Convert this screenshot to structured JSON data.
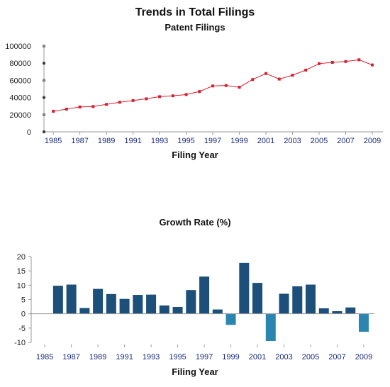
{
  "header": {
    "title": "Trends in Total Filings"
  },
  "chart_data": [
    {
      "type": "line",
      "title": "Patent Filings",
      "xlabel": "Filing Year",
      "ylabel": "",
      "ylim": [
        0,
        100000
      ],
      "yticks": [
        0,
        20000,
        40000,
        60000,
        80000,
        100000
      ],
      "xticks": [
        1985,
        1987,
        1989,
        1991,
        1993,
        1995,
        1997,
        1999,
        2001,
        2003,
        2005,
        2007,
        2009
      ],
      "x": [
        1985,
        1986,
        1987,
        1988,
        1989,
        1990,
        1991,
        1992,
        1993,
        1994,
        1995,
        1996,
        1997,
        1998,
        1999,
        2000,
        2001,
        2002,
        2003,
        2004,
        2005,
        2006,
        2007,
        2008,
        2009
      ],
      "values": [
        24000,
        26500,
        29000,
        29500,
        32000,
        34500,
        36500,
        38500,
        41000,
        42000,
        43500,
        47000,
        53500,
        54000,
        52000,
        61000,
        68000,
        61500,
        66000,
        72000,
        79500,
        81000,
        82000,
        84000,
        78000
      ],
      "color": "#d42030",
      "grid": false
    },
    {
      "type": "bar",
      "title": "Growth Rate (%)",
      "xlabel": "Filing Year",
      "ylabel": "",
      "ylim": [
        -10,
        20
      ],
      "yticks": [
        -10,
        -5,
        0,
        5,
        10,
        15,
        20
      ],
      "xticks": [
        1985,
        1987,
        1989,
        1991,
        1993,
        1995,
        1997,
        1999,
        2001,
        2003,
        2005,
        2007,
        2009
      ],
      "x": [
        1986,
        1987,
        1988,
        1989,
        1990,
        1991,
        1992,
        1993,
        1994,
        1995,
        1996,
        1997,
        1998,
        1999,
        2000,
        2001,
        2002,
        2003,
        2004,
        2005,
        2006,
        2007,
        2008,
        2009
      ],
      "values": [
        9.8,
        10.2,
        2.0,
        8.7,
        6.9,
        5.2,
        6.6,
        6.7,
        2.9,
        2.4,
        8.3,
        13.0,
        1.5,
        -3.9,
        17.8,
        10.8,
        -9.5,
        7.0,
        9.6,
        10.2,
        1.9,
        0.9,
        2.2,
        -6.3
      ],
      "positive_color": "#1c4f7a",
      "negative_color": "#2a86ae",
      "grid": false
    }
  ]
}
